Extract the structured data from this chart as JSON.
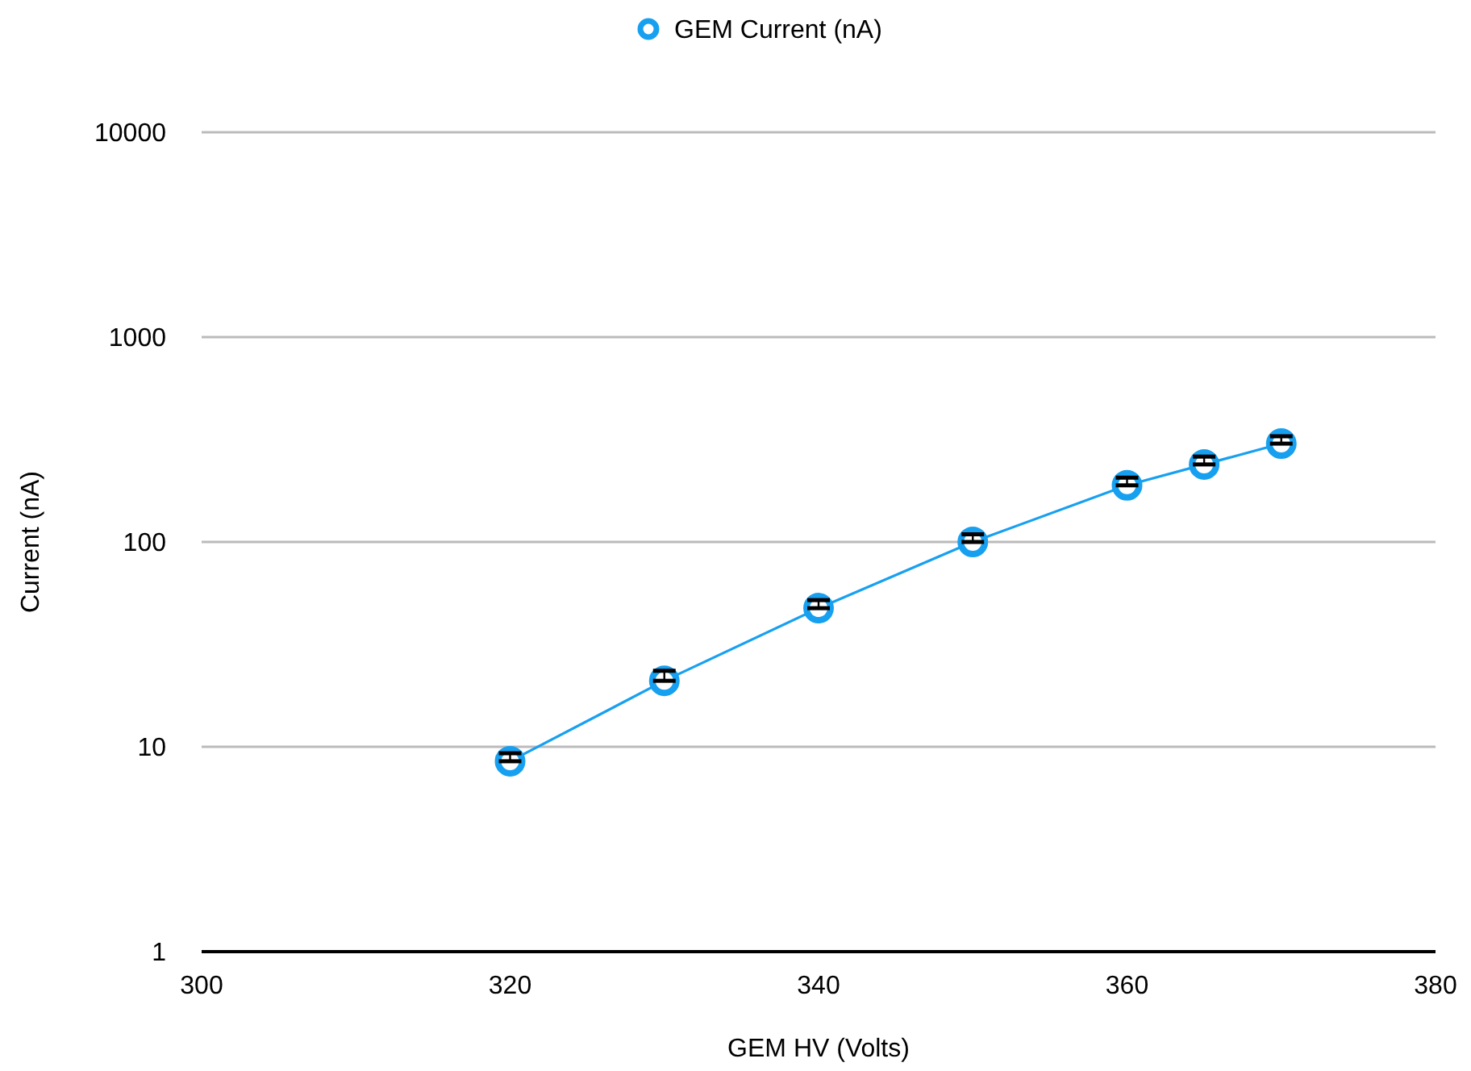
{
  "chart_data": {
    "type": "line",
    "xlabel": "GEM HV (Volts)",
    "ylabel": "Current (nA)",
    "x": [
      320,
      330,
      340,
      350,
      360,
      365,
      370
    ],
    "series": [
      {
        "name": "GEM Current (nA)",
        "color": "#18a0f0",
        "values": [
          8.5,
          21,
          47.5,
          100,
          189,
          239,
          302
        ],
        "errors": [
          [
            8.5,
            9.3
          ],
          [
            21,
            23.5
          ],
          [
            47.5,
            52
          ],
          [
            100,
            109
          ],
          [
            189,
            206
          ],
          [
            239,
            261
          ],
          [
            302,
            328
          ]
        ]
      }
    ],
    "xlim": [
      300,
      380
    ],
    "xticks": [
      300,
      320,
      340,
      360,
      380
    ],
    "ylim": [
      1,
      10000
    ],
    "yticks": [
      1,
      10,
      100,
      1000,
      10000
    ],
    "log": "y",
    "grid": "y",
    "legend": "top",
    "marker": "circle",
    "line_style": "solid"
  }
}
